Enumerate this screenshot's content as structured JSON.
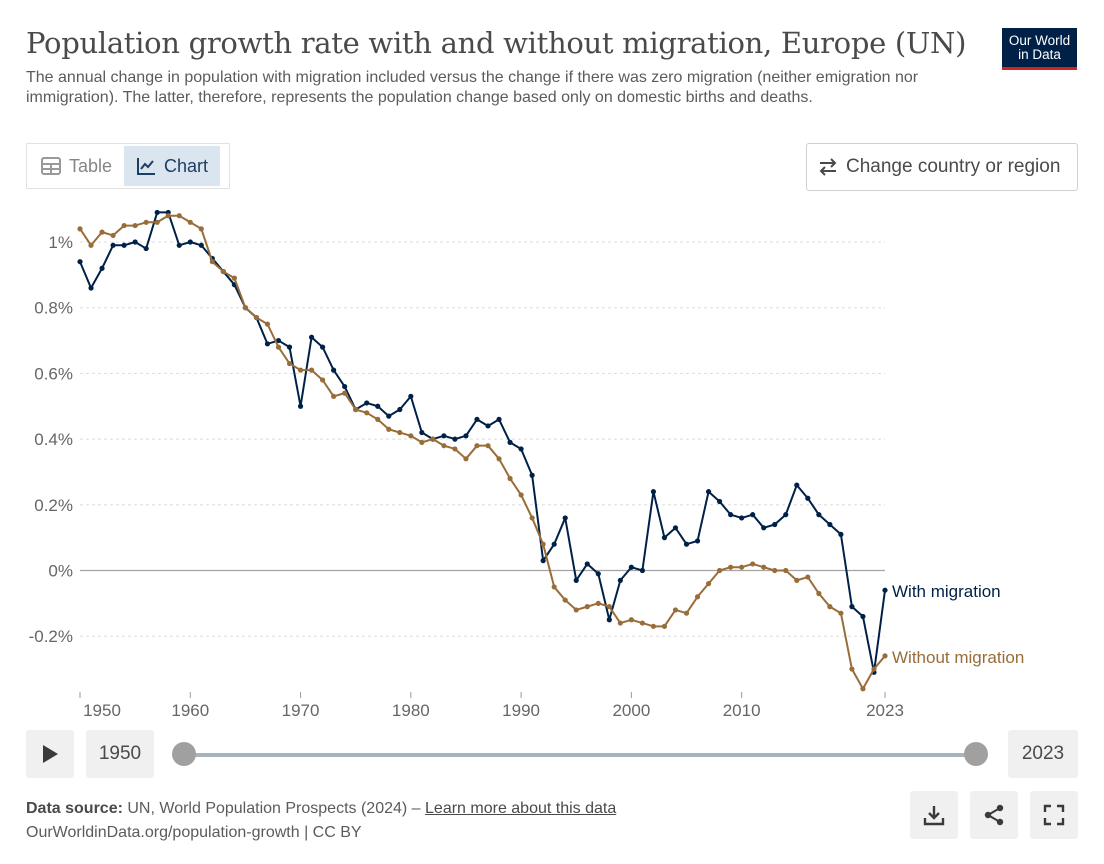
{
  "header": {
    "title": "Population growth rate with and without migration, Europe (UN)",
    "subtitle": "The annual change in population with migration included versus the change if there was zero migration (neither emigration nor immigration). The latter, therefore, represents the population change based only on domestic births and deaths.",
    "logo_line1": "Our World",
    "logo_line2": "in Data"
  },
  "tabs": [
    {
      "label": "Table",
      "icon": "table-icon",
      "active": false
    },
    {
      "label": "Chart",
      "icon": "line-chart-icon",
      "active": true
    }
  ],
  "change_button": {
    "label": "Change country or region",
    "icon": "swap-arrows-icon"
  },
  "timeline": {
    "start_label": "1950",
    "end_label": "2023",
    "play_icon": "play-icon"
  },
  "footer": {
    "source_label": "Data source:",
    "source_text": "UN, World Population Prospects (2024) –",
    "learn_more": "Learn more about this data",
    "url_text": "OurWorldinData.org/population-growth | CC BY"
  },
  "actions": [
    {
      "name": "download-button",
      "icon": "download-icon"
    },
    {
      "name": "share-button",
      "icon": "share-icon"
    },
    {
      "name": "fullscreen-button",
      "icon": "fullscreen-icon"
    }
  ],
  "colors": {
    "with_migration": "#002147",
    "without_migration": "#996d39",
    "grid": "#dddddd",
    "zero_line": "#a3a3a3"
  },
  "chart_data": {
    "type": "line",
    "ylim": [
      -0.35,
      1.1
    ],
    "xlim": [
      1950,
      2023
    ],
    "yticks": [
      -0.2,
      0,
      0.2,
      0.4,
      0.6,
      0.8,
      1.0
    ],
    "ytick_labels": [
      "-0.2%",
      "0%",
      "0.2%",
      "0.4%",
      "0.6%",
      "0.8%",
      "1%"
    ],
    "xticks": [
      1950,
      1960,
      1970,
      1980,
      1990,
      2000,
      2010,
      2023
    ],
    "xtick_labels": [
      "1950",
      "1960",
      "1970",
      "1980",
      "1990",
      "2000",
      "2010",
      "2023"
    ],
    "grid": "horizontal-dotted",
    "legend": "inline-right",
    "x_start": 1950,
    "series": [
      {
        "name": "With migration",
        "color": "#002147",
        "values": [
          0.94,
          0.86,
          0.92,
          0.99,
          0.99,
          1.0,
          0.98,
          1.09,
          1.09,
          0.99,
          1.0,
          0.99,
          0.95,
          0.91,
          0.87,
          0.8,
          0.77,
          0.69,
          0.7,
          0.68,
          0.5,
          0.71,
          0.68,
          0.61,
          0.56,
          0.49,
          0.51,
          0.5,
          0.47,
          0.49,
          0.53,
          0.42,
          0.4,
          0.41,
          0.4,
          0.41,
          0.46,
          0.44,
          0.46,
          0.39,
          0.37,
          0.29,
          0.03,
          0.08,
          0.16,
          -0.03,
          0.02,
          -0.01,
          -0.15,
          -0.03,
          0.01,
          0.0,
          0.24,
          0.1,
          0.13,
          0.08,
          0.09,
          0.24,
          0.21,
          0.17,
          0.16,
          0.17,
          0.13,
          0.14,
          0.17,
          0.26,
          0.22,
          0.17,
          0.14,
          0.11,
          -0.11,
          -0.14,
          -0.31,
          -0.06
        ]
      },
      {
        "name": "Without migration",
        "color": "#996d39",
        "values": [
          1.04,
          0.99,
          1.03,
          1.02,
          1.05,
          1.05,
          1.06,
          1.06,
          1.08,
          1.08,
          1.06,
          1.04,
          0.94,
          0.91,
          0.89,
          0.8,
          0.77,
          0.75,
          0.68,
          0.63,
          0.61,
          0.61,
          0.58,
          0.53,
          0.54,
          0.49,
          0.48,
          0.46,
          0.43,
          0.42,
          0.41,
          0.39,
          0.4,
          0.38,
          0.37,
          0.34,
          0.38,
          0.38,
          0.34,
          0.28,
          0.23,
          0.16,
          0.08,
          -0.05,
          -0.09,
          -0.12,
          -0.11,
          -0.1,
          -0.11,
          -0.16,
          -0.15,
          -0.16,
          -0.17,
          -0.17,
          -0.12,
          -0.13,
          -0.08,
          -0.04,
          0.0,
          0.01,
          0.01,
          0.02,
          0.01,
          0.0,
          0.0,
          -0.03,
          -0.02,
          -0.07,
          -0.11,
          -0.13,
          -0.3,
          -0.36,
          -0.3,
          -0.26
        ]
      }
    ]
  }
}
